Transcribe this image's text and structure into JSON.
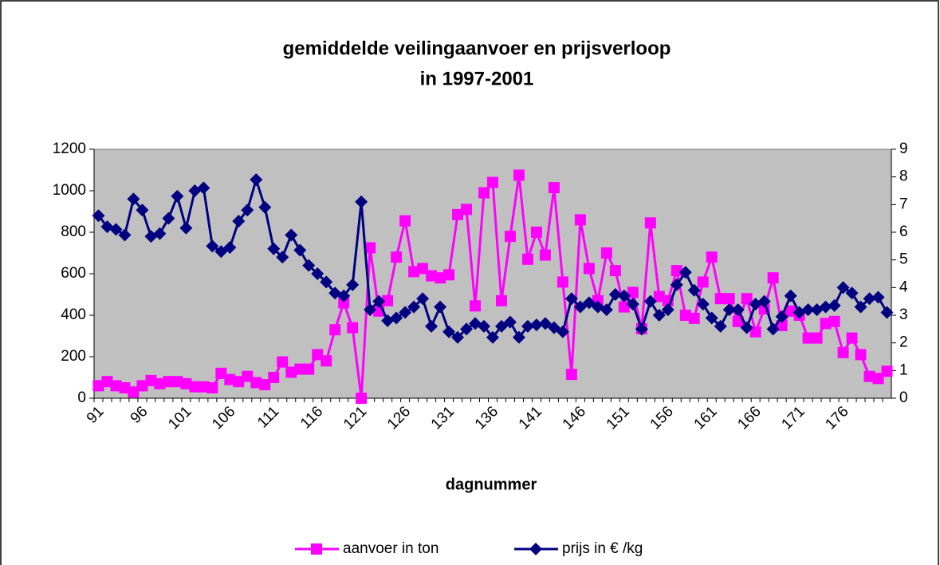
{
  "chart_data": {
    "type": "line",
    "title": [
      "gemiddelde veilingaanvoer en prijsverloop",
      "in 1997-2001"
    ],
    "x_label": "dagnummer",
    "categories": [
      91,
      null,
      null,
      null,
      null,
      96,
      null,
      null,
      null,
      null,
      101,
      null,
      null,
      null,
      null,
      106,
      null,
      null,
      null,
      null,
      111,
      null,
      null,
      null,
      null,
      116,
      null,
      null,
      null,
      null,
      121,
      null,
      null,
      null,
      null,
      126,
      null,
      null,
      null,
      null,
      131,
      null,
      null,
      null,
      null,
      136,
      null,
      null,
      null,
      null,
      141,
      null,
      null,
      null,
      null,
      146,
      null,
      null,
      null,
      null,
      151,
      null,
      null,
      null,
      null,
      156,
      null,
      null,
      null,
      null,
      161,
      null,
      null,
      null,
      null,
      166,
      null,
      null,
      null,
      null,
      171,
      null,
      null,
      null,
      null,
      176,
      null,
      null,
      null,
      null,
      null
    ],
    "series": [
      {
        "name": "aanvoer in ton",
        "color": "#ff00ff",
        "marker": "square",
        "values": [
          60,
          80,
          60,
          50,
          30,
          60,
          85,
          70,
          80,
          80,
          70,
          55,
          55,
          50,
          120,
          90,
          80,
          105,
          75,
          65,
          100,
          175,
          125,
          140,
          140,
          210,
          180,
          330,
          460,
          340,
          0,
          725,
          420,
          470,
          680,
          855,
          610,
          625,
          590,
          580,
          595,
          885,
          910,
          445,
          990,
          1040,
          470,
          780,
          1075,
          670,
          800,
          690,
          1015,
          560,
          115,
          860,
          625,
          470,
          700,
          615,
          440,
          510,
          335,
          845,
          490,
          470,
          615,
          400,
          385,
          560,
          680,
          480,
          480,
          370,
          480,
          320,
          430,
          580,
          350,
          420,
          400,
          290,
          290,
          360,
          370,
          220,
          290,
          210,
          105,
          95,
          130
        ]
      },
      {
        "name": "prijs in € /kg",
        "color": "#000080",
        "marker": "diamond",
        "axis": "y2",
        "values": [
          6.6,
          6.2,
          6.1,
          5.9,
          7.2,
          6.8,
          5.85,
          5.95,
          6.5,
          7.3,
          6.15,
          7.5,
          7.6,
          5.5,
          5.3,
          5.45,
          6.4,
          6.8,
          7.9,
          6.9,
          5.4,
          5.1,
          5.9,
          5.35,
          4.8,
          4.5,
          4.2,
          3.8,
          3.7,
          4.1,
          7.1,
          3.2,
          3.5,
          2.8,
          2.9,
          3.1,
          3.3,
          3.6,
          2.6,
          3.3,
          2.4,
          2.2,
          2.5,
          2.7,
          2.6,
          2.2,
          2.6,
          2.75,
          2.2,
          2.6,
          2.65,
          2.7,
          2.55,
          2.4,
          3.6,
          3.3,
          3.45,
          3.3,
          3.2,
          3.75,
          3.7,
          3.4,
          2.5,
          3.5,
          3.0,
          3.2,
          4.1,
          4.55,
          3.9,
          3.4,
          2.9,
          2.6,
          3.2,
          3.2,
          2.55,
          3.4,
          3.5,
          2.5,
          2.95,
          3.7,
          3.1,
          3.2,
          3.2,
          3.3,
          3.35,
          4.0,
          3.8,
          3.3,
          3.6,
          3.65,
          3.1
        ]
      }
    ],
    "ylim": [
      0,
      1200
    ],
    "yticks": [
      0,
      200,
      400,
      600,
      800,
      1000,
      1200
    ],
    "y2lim": [
      0,
      9
    ],
    "y2ticks": [
      0,
      1,
      2,
      3,
      4,
      5,
      6,
      7,
      8,
      9
    ],
    "grid": false,
    "plot_background": "#c0c0c0",
    "legend": "bottom"
  }
}
